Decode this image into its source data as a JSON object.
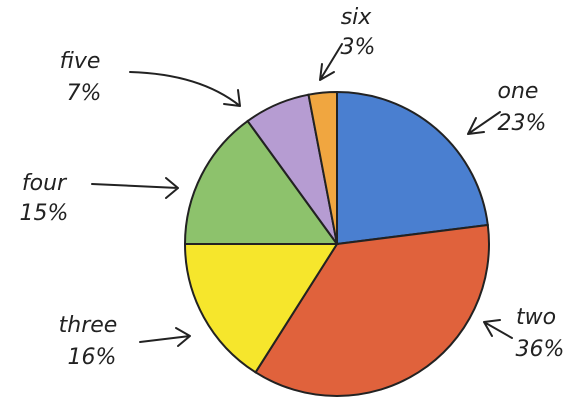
{
  "chart_data": {
    "type": "pie",
    "categories": [
      "one",
      "two",
      "three",
      "four",
      "five",
      "six"
    ],
    "values": [
      23,
      36,
      16,
      15,
      7,
      3
    ],
    "value_labels": [
      "23%",
      "36%",
      "16%",
      "15%",
      "7%",
      "3%"
    ],
    "colors": [
      "#4a7fd0",
      "#e0623c",
      "#f6e62c",
      "#8dc26c",
      "#b69cd2",
      "#f0a640"
    ]
  }
}
